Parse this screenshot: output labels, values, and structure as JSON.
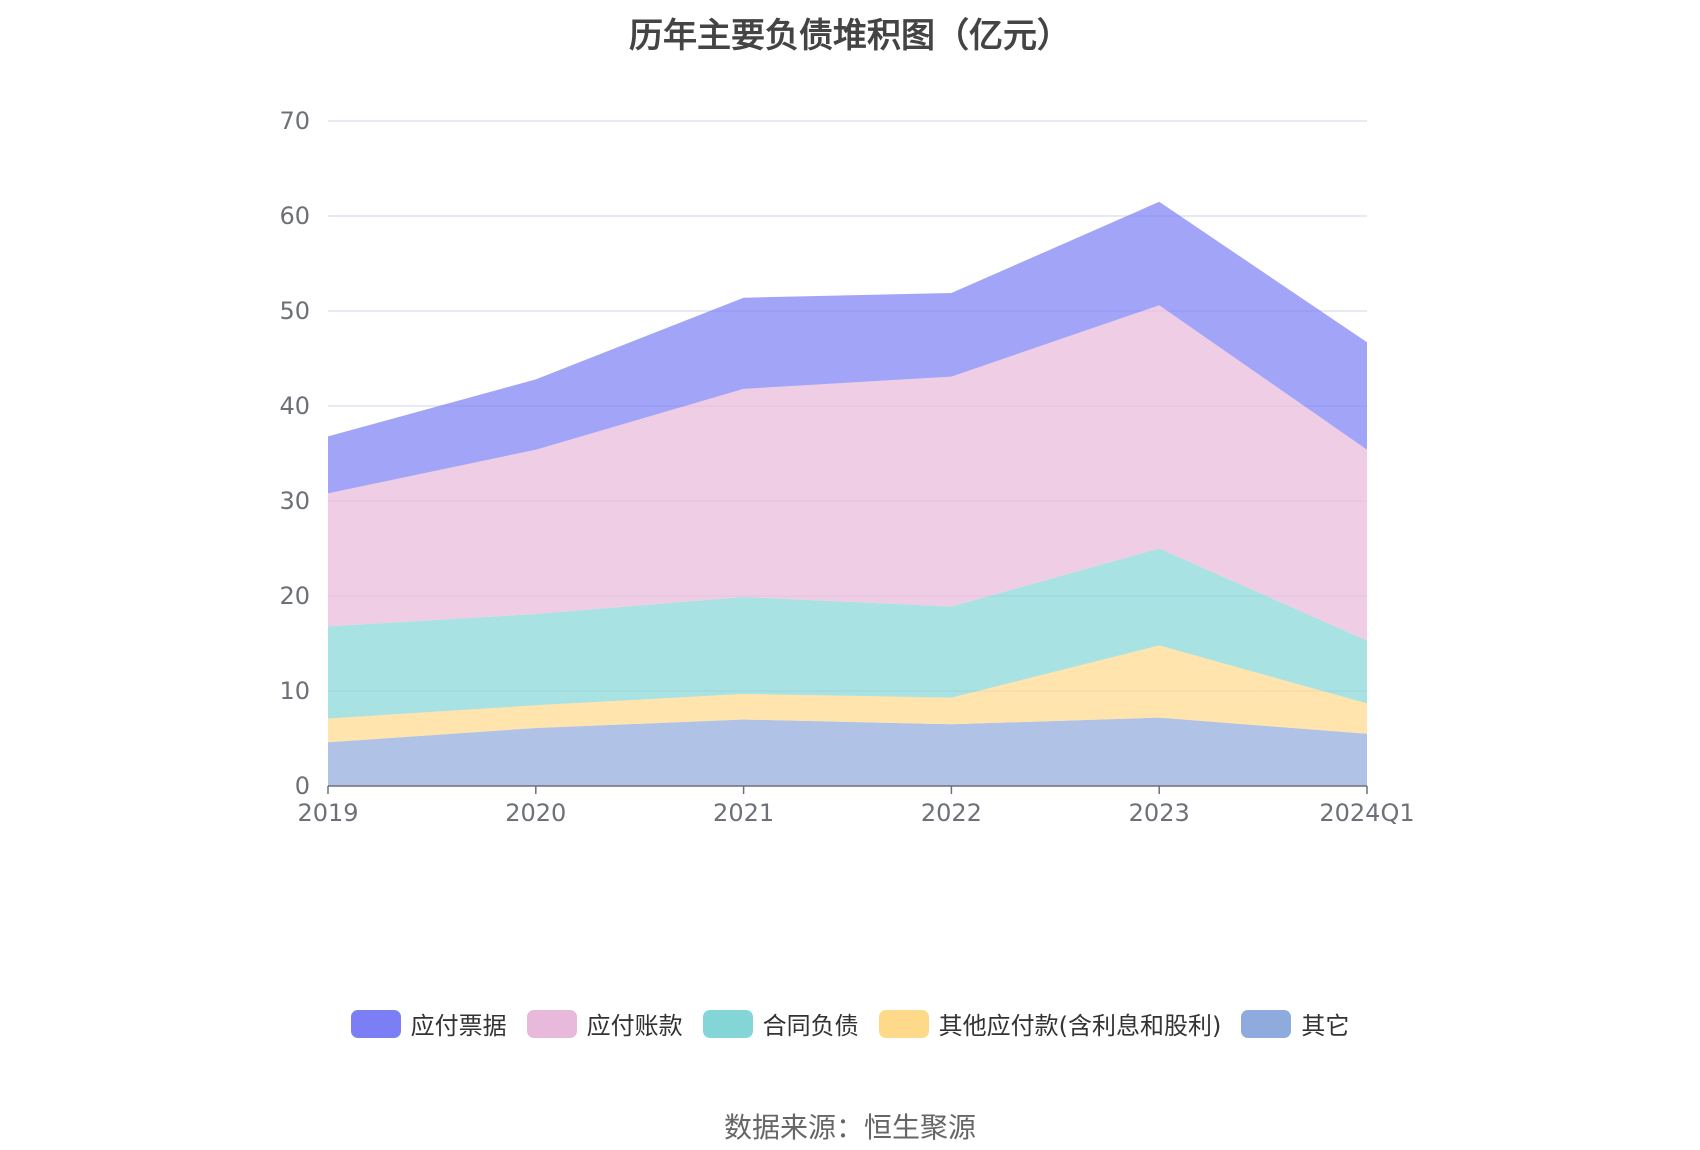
{
  "chart_data": {
    "type": "area",
    "title": "历年主要负债堆积图（亿元）",
    "xlabel": "",
    "ylabel": "",
    "categories": [
      "2019",
      "2020",
      "2021",
      "2022",
      "2023",
      "2024Q1"
    ],
    "ylim": [
      0,
      70
    ],
    "yticks": [
      0,
      10,
      20,
      30,
      40,
      50,
      60,
      70
    ],
    "grid": true,
    "stacked": true,
    "legend_position": "bottom",
    "series": [
      {
        "name": "其它",
        "color": "#8faadc",
        "values": [
          4.6,
          6.1,
          7.0,
          6.5,
          7.2,
          5.5
        ]
      },
      {
        "name": "其他应付款(含利息和股利)",
        "color": "#ffd98a",
        "values": [
          2.5,
          2.4,
          2.7,
          2.8,
          7.6,
          3.2
        ]
      },
      {
        "name": "合同负债",
        "color": "#84d6d6",
        "values": [
          9.7,
          9.6,
          10.2,
          9.6,
          10.2,
          6.6
        ]
      },
      {
        "name": "应付账款",
        "color": "#e8b9da",
        "values": [
          14.0,
          17.3,
          21.9,
          24.2,
          25.6,
          20.1
        ]
      },
      {
        "name": "应付票据",
        "color": "#7b7ef5",
        "values": [
          6.0,
          7.4,
          9.6,
          8.8,
          10.9,
          11.3
        ]
      }
    ]
  },
  "legend_order": [
    "应付票据",
    "应付账款",
    "合同负债",
    "其他应付款(含利息和股利)",
    "其它"
  ],
  "source": "数据来源：恒生聚源"
}
